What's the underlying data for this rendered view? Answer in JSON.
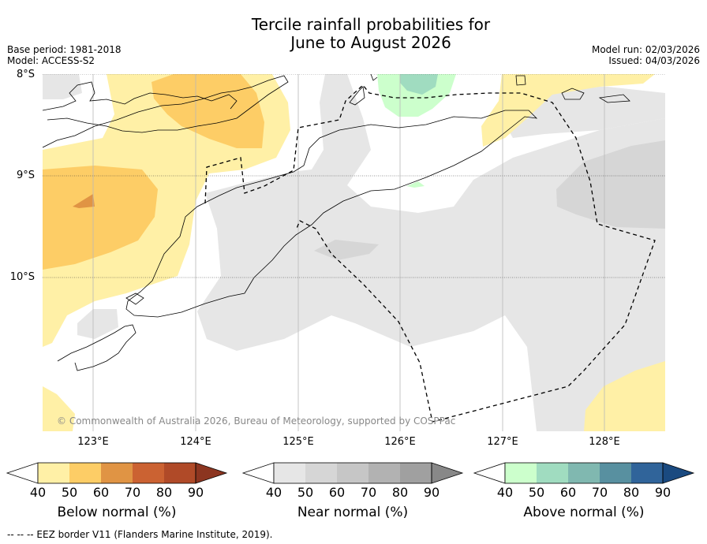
{
  "chart_data": {
    "type": "map",
    "title_line1": "Tercile rainfall probabilities for",
    "title_line2": "June to August 2026",
    "base_period": "Base period: 1981-2018",
    "model": "Model: ACCESS-S2",
    "model_run": "Model run: 02/03/2026",
    "issued": "Issued: 04/03/2026",
    "lat_labels": [
      "8°S",
      "9°S",
      "10°S"
    ],
    "lat_values": [
      -8,
      -9,
      -10
    ],
    "lon_labels": [
      "123°E",
      "124°E",
      "125°E",
      "126°E",
      "127°E",
      "128°E"
    ],
    "lon_values": [
      123,
      124,
      125,
      126,
      127,
      128
    ],
    "lon_range": [
      122.5,
      128.6
    ],
    "lat_range": [
      -11.5,
      -8
    ],
    "copyright": "© Commonwealth of Australia 2026, Bureau of Meteorology, supported by COSPPac",
    "legends": [
      {
        "name": "Below normal (%)",
        "ticks": [
          "40",
          "50",
          "60",
          "70",
          "80",
          "90"
        ],
        "colors": [
          "#fff0a6",
          "#fdcd66",
          "#e09444",
          "#cb6232",
          "#b04a28",
          "#8c3520"
        ]
      },
      {
        "name": "Near normal (%)",
        "ticks": [
          "40",
          "50",
          "60",
          "70",
          "80",
          "90"
        ],
        "colors": [
          "#e6e6e6",
          "#d6d6d6",
          "#c6c6c6",
          "#b2b2b2",
          "#a0a0a0",
          "#888888"
        ]
      },
      {
        "name": "Above normal (%)",
        "ticks": [
          "40",
          "50",
          "60",
          "70",
          "80",
          "90"
        ],
        "colors": [
          "#ccffcc",
          "#a0dcc0",
          "#80b8b0",
          "#5890a0",
          "#30649a",
          "#1a4a80"
        ]
      }
    ],
    "footer": "-- -- -- EEZ border V11 (Flanders Marine Institute, 2019)."
  }
}
